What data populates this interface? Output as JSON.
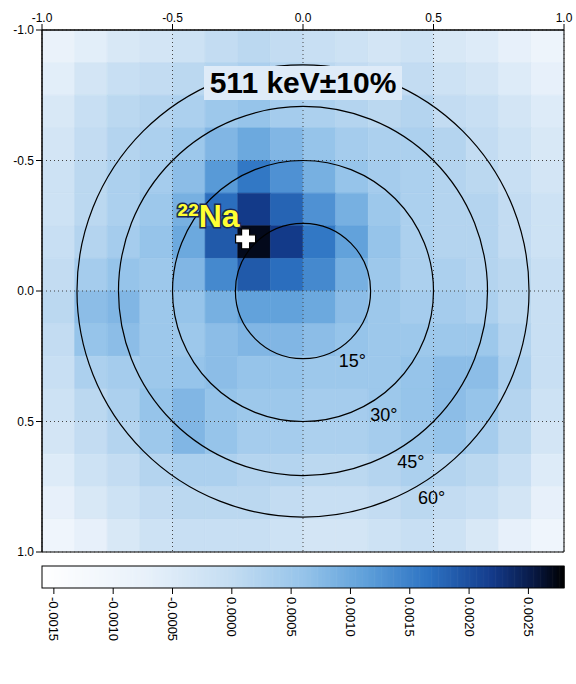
{
  "chart_data": {
    "type": "heatmap",
    "title": "511 keV±10%",
    "xlim": [
      -1,
      1
    ],
    "ylim": [
      -1,
      1
    ],
    "xticks": [
      {
        "value": -1,
        "label": "-1.0"
      },
      -0.5,
      {
        "value": 0,
        "label": "0.0"
      },
      0.5,
      {
        "value": 1,
        "label": "1.0"
      }
    ],
    "yticks": [
      {
        "value": -1,
        "label": "-1.0"
      },
      -0.5,
      {
        "value": 0,
        "label": "0.0"
      },
      0.5,
      {
        "value": 1,
        "label": "1.0"
      }
    ],
    "grid": true,
    "cells": {
      "x": [
        -0.9375,
        -0.8125,
        -0.6875,
        -0.5625,
        -0.4375,
        -0.3125,
        -0.1875,
        -0.0625,
        0.0625,
        0.1875,
        0.3125,
        0.4375,
        0.5625,
        0.6875,
        0.8125,
        0.9375
      ],
      "y": [
        -0.9375,
        -0.8125,
        -0.6875,
        -0.5625,
        -0.4375,
        -0.3125,
        -0.1875,
        -0.0625,
        0.0625,
        0.1875,
        0.3125,
        0.4375,
        0.5625,
        0.6875,
        0.8125,
        0.9375
      ],
      "values": [
        [
          -0.0008,
          -0.0006,
          -0.0004,
          -0.0003,
          -0.0002,
          0,
          0.0001,
          0,
          -0.0001,
          -0.0002,
          -0.0003,
          -0.0002,
          -0.0004,
          -0.0005,
          -0.0007,
          -0.0009
        ],
        [
          -0.0006,
          -0.0003,
          -0.0001,
          0,
          0.0001,
          0.0002,
          0.0003,
          0.0002,
          0.0001,
          0,
          -0.0001,
          0,
          -0.0002,
          -0.0003,
          -0.0005,
          -0.0007
        ],
        [
          -0.0004,
          -0.0001,
          0.0001,
          0.0002,
          0.0003,
          0.0005,
          0.0006,
          0.0004,
          0.0003,
          0.0002,
          0.0001,
          0.0002,
          0,
          -0.0001,
          -0.0003,
          -0.0005
        ],
        [
          -0.0003,
          0,
          0.0002,
          0.0003,
          0.0005,
          0.0008,
          0.001,
          0.0008,
          0.0006,
          0.0004,
          0.0003,
          0.0003,
          0.0002,
          0,
          -0.0002,
          -0.0004
        ],
        [
          -0.0002,
          0.0001,
          0.0003,
          0.0004,
          0.0007,
          0.0012,
          0.0016,
          0.0013,
          0.0009,
          0.0006,
          0.0004,
          0.0003,
          0.0002,
          0.0001,
          -0.0001,
          -0.0003
        ],
        [
          -0.0002,
          0.0001,
          0.0003,
          0.0005,
          0.0009,
          0.0017,
          0.0022,
          0.0018,
          0.0013,
          0.0009,
          0.0005,
          0.0003,
          0.0002,
          0.0002,
          0,
          -0.0002
        ],
        [
          -0.0001,
          0.0002,
          0.0004,
          0.0006,
          0.001,
          0.0019,
          0.0027,
          0.0022,
          0.0016,
          0.0011,
          0.0006,
          0.0003,
          0.0002,
          0.0002,
          0,
          -0.0002
        ],
        [
          0,
          0.0004,
          0.0006,
          0.0005,
          0.0008,
          0.0014,
          0.0019,
          0.0017,
          0.0014,
          0.0009,
          0.0005,
          0.0003,
          0.0003,
          0.0002,
          0.0001,
          -0.0001
        ],
        [
          0.0001,
          0.0007,
          0.0008,
          0.0005,
          0.0006,
          0.0009,
          0.0011,
          0.0011,
          0.001,
          0.0007,
          0.0005,
          0.0004,
          0.0004,
          0.0003,
          0.0001,
          -0.0001
        ],
        [
          0,
          0.0006,
          0.0007,
          0.0005,
          0.0005,
          0.0007,
          0.0008,
          0.0008,
          0.0007,
          0.0006,
          0.0005,
          0.0005,
          0.0005,
          0.0005,
          0.0002,
          -0.0001
        ],
        [
          -0.0001,
          0.0003,
          0.0004,
          0.0005,
          0.0006,
          0.0007,
          0.0006,
          0.0006,
          0.0005,
          0.0005,
          0.0005,
          0.0006,
          0.0007,
          0.0007,
          0.0003,
          -0.0001
        ],
        [
          -0.0002,
          0.0001,
          0.0003,
          0.0006,
          0.0008,
          0.0006,
          0.0005,
          0.0005,
          0.0004,
          0.0004,
          0.0005,
          0.0006,
          0.0007,
          0.0006,
          0.0002,
          -0.0002
        ],
        [
          -0.0003,
          0,
          0.0002,
          0.0005,
          0.0008,
          0.0006,
          0.0004,
          0.0004,
          0.0003,
          0.0003,
          0.0004,
          0.0005,
          0.0006,
          0.0004,
          0.0001,
          -0.0003
        ],
        [
          -0.0005,
          -0.0002,
          0,
          0.0002,
          0.0003,
          0.0003,
          0.0002,
          0.0002,
          0.0001,
          0.0001,
          0.0002,
          0.0003,
          0.0002,
          0.0001,
          -0.0001,
          -0.0005
        ],
        [
          -0.0007,
          -0.0004,
          -0.0002,
          0,
          0.0001,
          0.0001,
          0.0001,
          0,
          -0.0001,
          -0.0001,
          0,
          0.0001,
          0,
          -0.0001,
          -0.0003,
          -0.0007
        ],
        [
          -0.001,
          -0.0007,
          -0.0004,
          -0.0002,
          -0.0001,
          -0.0001,
          -0.0001,
          -0.0002,
          -0.0003,
          -0.0003,
          -0.0002,
          -0.0001,
          -0.0002,
          -0.0004,
          -0.0007,
          -0.001
        ]
      ]
    },
    "colorbar": {
      "range": [
        -0.0016,
        0.0028
      ],
      "ticks": [
        -0.0015,
        {
          "value": -0.001,
          "label": "-0.0010"
        },
        -0.0005,
        {
          "value": 0,
          "label": "0.0000"
        },
        0.0005,
        {
          "value": 0.001,
          "label": "0.0010"
        },
        0.0015,
        {
          "value": 0.002,
          "label": "0.0020"
        },
        0.0025
      ]
    },
    "circles": [
      {
        "label": "15°",
        "x": 0,
        "y": 0,
        "radius": 0.259
      },
      {
        "label": "30°",
        "x": 0,
        "y": 0,
        "radius": 0.5
      },
      {
        "label": "45°",
        "x": 0,
        "y": 0,
        "radius": 0.707
      },
      {
        "label": "60°",
        "x": 0,
        "y": 0,
        "radius": 0.866
      }
    ],
    "annotations": [
      {
        "text": "²²Na",
        "x": -0.22,
        "y": -0.2
      }
    ]
  }
}
